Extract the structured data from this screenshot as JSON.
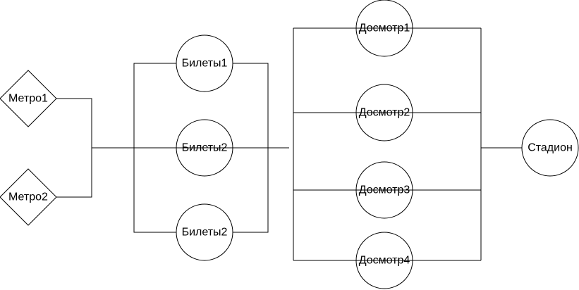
{
  "diagram": {
    "colors": {
      "line": "#000000",
      "background": "#ffffff"
    },
    "nodes": {
      "metro1": {
        "label": "Метро1",
        "shape": "diamond"
      },
      "metro2": {
        "label": "Метро2",
        "shape": "diamond"
      },
      "bilety1": {
        "label": "Билеты1",
        "shape": "circle"
      },
      "bilety2a": {
        "label": "Билеты2",
        "shape": "circle"
      },
      "bilety2b": {
        "label": "Билеты2",
        "shape": "circle"
      },
      "dosmotr1": {
        "label": "Досмотр1",
        "shape": "circle"
      },
      "dosmotr2": {
        "label": "Досмотр2",
        "shape": "circle"
      },
      "dosmotr3": {
        "label": "Досмотр3",
        "shape": "circle"
      },
      "dosmotr4": {
        "label": "Досмотр4",
        "shape": "circle"
      },
      "stadion": {
        "label": "Стадион",
        "shape": "circle"
      }
    }
  }
}
